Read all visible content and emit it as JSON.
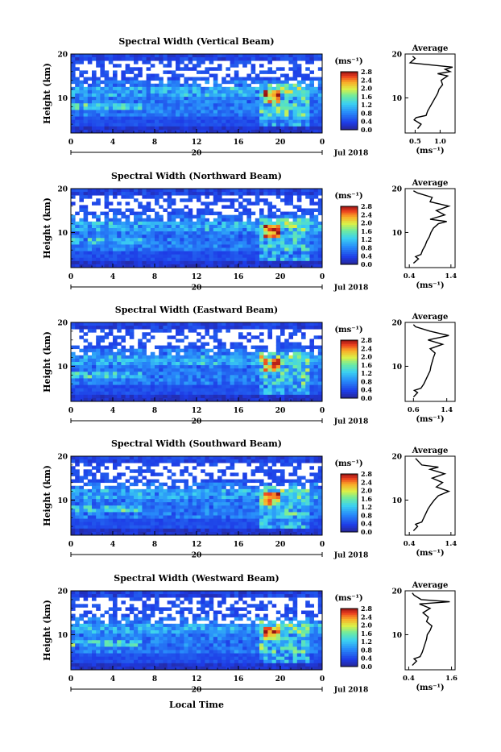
{
  "figure": {
    "xlabel": "Local Time",
    "date_label": "20",
    "month_label": "Jul 2018",
    "height_label": "Height (km)",
    "cbar_unit": "(ms⁻¹)",
    "avg_title": "Average",
    "avg_unit": "(ms⁻¹)"
  },
  "chart_data": [
    {
      "type": "heatmap",
      "title": "Spectral Width (Vertical Beam)",
      "x_ticks": [
        "0",
        "4",
        "8",
        "12",
        "16",
        "20",
        "0"
      ],
      "y_ticks": [
        "20",
        "10"
      ],
      "xlim": [
        0,
        24
      ],
      "ylim": [
        2,
        20
      ],
      "colorbar": {
        "range": [
          0.0,
          2.8
        ],
        "ticks": [
          "2.8",
          "2.4",
          "2.0",
          "1.6",
          "1.2",
          "0.8",
          "0.4",
          "0.0"
        ]
      },
      "average": {
        "x_ticks": [
          "0.5",
          "1.0"
        ],
        "xlim": [
          0.3,
          1.3
        ],
        "profile": [
          [
            0.55,
            3
          ],
          [
            0.62,
            4
          ],
          [
            0.48,
            5
          ],
          [
            0.52,
            5.5
          ],
          [
            0.72,
            6
          ],
          [
            0.75,
            7
          ],
          [
            0.8,
            8
          ],
          [
            0.85,
            9
          ],
          [
            0.9,
            10
          ],
          [
            0.95,
            11
          ],
          [
            0.98,
            12
          ],
          [
            1.05,
            13
          ],
          [
            1.02,
            14
          ],
          [
            1.15,
            15
          ],
          [
            0.95,
            15.5
          ],
          [
            1.2,
            16
          ],
          [
            1.1,
            16.5
          ],
          [
            1.25,
            17
          ],
          [
            0.4,
            18
          ],
          [
            0.5,
            19
          ],
          [
            0.45,
            19.5
          ]
        ]
      }
    },
    {
      "type": "heatmap",
      "title": "Spectral Width (Northward Beam)",
      "x_ticks": [
        "0",
        "4",
        "8",
        "12",
        "16",
        "20",
        "0"
      ],
      "y_ticks": [
        "20",
        "10"
      ],
      "xlim": [
        0,
        24
      ],
      "ylim": [
        2,
        20
      ],
      "colorbar": {
        "range": [
          0.0,
          2.8
        ],
        "ticks": [
          "2.8",
          "2.4",
          "2.0",
          "1.6",
          "1.2",
          "0.8",
          "0.4",
          "0.0"
        ]
      },
      "average": {
        "x_ticks": [
          "0.4",
          "1.4"
        ],
        "xlim": [
          0.3,
          1.5
        ],
        "profile": [
          [
            0.5,
            3
          ],
          [
            0.62,
            4
          ],
          [
            0.55,
            4.5
          ],
          [
            0.68,
            5
          ],
          [
            0.72,
            6
          ],
          [
            0.78,
            7
          ],
          [
            0.82,
            8
          ],
          [
            0.88,
            9
          ],
          [
            0.92,
            10
          ],
          [
            0.98,
            11
          ],
          [
            1.1,
            12
          ],
          [
            1.3,
            12.5
          ],
          [
            0.9,
            13
          ],
          [
            1.25,
            14
          ],
          [
            1.05,
            15
          ],
          [
            1.35,
            16
          ],
          [
            0.9,
            17
          ],
          [
            0.95,
            18
          ],
          [
            0.6,
            19
          ],
          [
            0.5,
            19.5
          ]
        ]
      }
    },
    {
      "type": "heatmap",
      "title": "Spectral Width (Eastward Beam)",
      "x_ticks": [
        "0",
        "4",
        "8",
        "12",
        "16",
        "20",
        "0"
      ],
      "y_ticks": [
        "20",
        "10"
      ],
      "xlim": [
        0,
        24
      ],
      "ylim": [
        2,
        20
      ],
      "colorbar": {
        "range": [
          0.0,
          2.8
        ],
        "ticks": [
          "2.8",
          "2.4",
          "2.0",
          "1.6",
          "1.2",
          "0.8",
          "0.4",
          "0.0"
        ]
      },
      "average": {
        "x_ticks": [
          "0.6",
          "1.4"
        ],
        "xlim": [
          0.4,
          1.6
        ],
        "profile": [
          [
            0.6,
            3
          ],
          [
            0.7,
            4
          ],
          [
            0.62,
            4.5
          ],
          [
            0.78,
            5
          ],
          [
            0.85,
            6
          ],
          [
            0.9,
            7
          ],
          [
            0.95,
            8
          ],
          [
            1.0,
            9
          ],
          [
            1.02,
            10
          ],
          [
            1.05,
            11
          ],
          [
            1.08,
            12
          ],
          [
            1.12,
            13
          ],
          [
            1.0,
            14
          ],
          [
            1.3,
            15
          ],
          [
            0.95,
            16
          ],
          [
            1.45,
            17
          ],
          [
            1.0,
            18
          ],
          [
            0.65,
            19
          ],
          [
            0.6,
            19.5
          ]
        ]
      }
    },
    {
      "type": "heatmap",
      "title": "Spectral Width (Southward Beam)",
      "x_ticks": [
        "0",
        "4",
        "8",
        "12",
        "16",
        "20",
        "0"
      ],
      "y_ticks": [
        "20",
        "10"
      ],
      "xlim": [
        0,
        24
      ],
      "ylim": [
        2,
        20
      ],
      "colorbar": {
        "range": [
          0.0,
          2.8
        ],
        "ticks": [
          "2.8",
          "2.4",
          "2.0",
          "1.6",
          "1.2",
          "0.8",
          "0.4",
          "0.0"
        ]
      },
      "average": {
        "x_ticks": [
          "0.4",
          "1.4"
        ],
        "xlim": [
          0.3,
          1.5
        ],
        "profile": [
          [
            0.5,
            3
          ],
          [
            0.6,
            4
          ],
          [
            0.55,
            4.5
          ],
          [
            0.7,
            5
          ],
          [
            0.75,
            6
          ],
          [
            0.8,
            7
          ],
          [
            0.85,
            8
          ],
          [
            0.92,
            9
          ],
          [
            1.0,
            10
          ],
          [
            1.1,
            11
          ],
          [
            1.35,
            12
          ],
          [
            1.05,
            13
          ],
          [
            1.2,
            14
          ],
          [
            0.95,
            15
          ],
          [
            1.25,
            16
          ],
          [
            0.9,
            17
          ],
          [
            1.1,
            17.5
          ],
          [
            0.7,
            18
          ],
          [
            0.6,
            19
          ],
          [
            0.55,
            19.5
          ]
        ]
      }
    },
    {
      "type": "heatmap",
      "title": "Spectral Width (Westward Beam)",
      "x_ticks": [
        "0",
        "4",
        "8",
        "12",
        "16",
        "20",
        "0"
      ],
      "y_ticks": [
        "20",
        "10"
      ],
      "xlim": [
        0,
        24
      ],
      "ylim": [
        2,
        20
      ],
      "colorbar": {
        "range": [
          0.0,
          2.8
        ],
        "ticks": [
          "2.8",
          "2.4",
          "2.0",
          "1.6",
          "1.2",
          "0.8",
          "0.4",
          "0.0"
        ]
      },
      "average": {
        "x_ticks": [
          "0.4",
          "1.6"
        ],
        "xlim": [
          0.3,
          1.7
        ],
        "profile": [
          [
            0.5,
            3
          ],
          [
            0.62,
            4
          ],
          [
            0.55,
            4.5
          ],
          [
            0.72,
            5
          ],
          [
            0.78,
            6
          ],
          [
            0.82,
            7
          ],
          [
            0.86,
            8
          ],
          [
            0.9,
            9
          ],
          [
            0.92,
            10
          ],
          [
            1.0,
            11
          ],
          [
            1.05,
            12
          ],
          [
            0.9,
            13
          ],
          [
            0.95,
            14
          ],
          [
            0.8,
            15
          ],
          [
            1.0,
            16
          ],
          [
            0.7,
            17
          ],
          [
            1.55,
            17.5
          ],
          [
            0.75,
            18
          ],
          [
            0.55,
            19
          ],
          [
            0.5,
            19.5
          ]
        ]
      }
    }
  ]
}
